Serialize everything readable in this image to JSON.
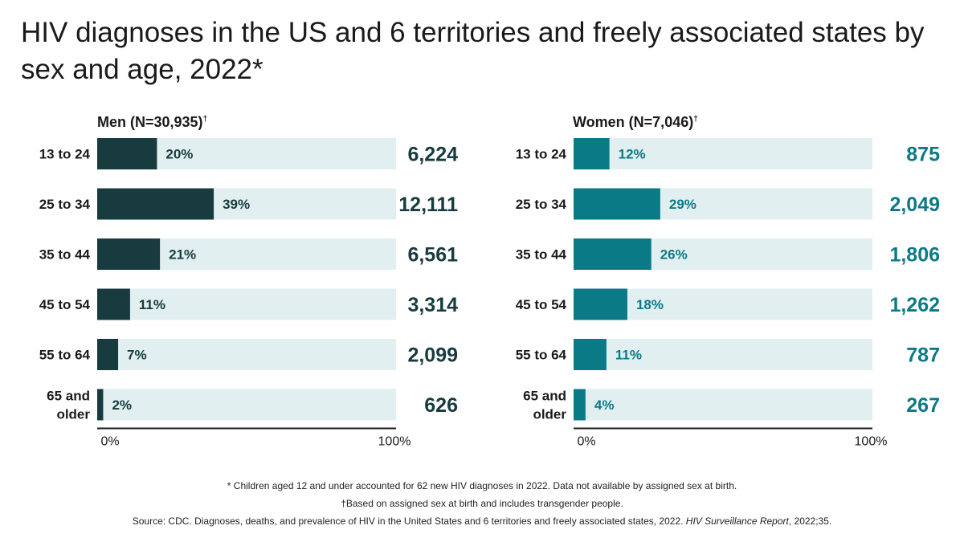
{
  "title": "HIV diagnoses in the US and 6 territories and freely associated states by sex and age, 2022*",
  "colors": {
    "men": "#173b3e",
    "women": "#0b7a87",
    "track": "#e1eff0",
    "axis": "#1a1a1a"
  },
  "chart_data": [
    {
      "type": "bar",
      "orientation": "horizontal",
      "panel_title": "Men (N=30,935)",
      "panel_mark": "†",
      "categories": [
        "13 to 24",
        "25 to 34",
        "35 to 44",
        "45 to 54",
        "55 to 64",
        "65 and older"
      ],
      "category_lines": [
        [
          "13 to 24"
        ],
        [
          "25 to 34"
        ],
        [
          "35 to 44"
        ],
        [
          "45 to 54"
        ],
        [
          "55 to 64"
        ],
        [
          "65 and",
          "older"
        ]
      ],
      "percent_values": [
        20,
        39,
        21,
        11,
        7,
        2
      ],
      "percent_labels": [
        "20%",
        "39%",
        "21%",
        "11%",
        "7%",
        "2%"
      ],
      "count_labels": [
        "6,224",
        "12,111",
        "6,561",
        "3,314",
        "2,099",
        "626"
      ],
      "xlim": [
        0,
        100
      ],
      "x_tick_labels": [
        "0%",
        "100%"
      ]
    },
    {
      "type": "bar",
      "orientation": "horizontal",
      "panel_title": "Women (N=7,046)",
      "panel_mark": "†",
      "categories": [
        "13 to 24",
        "25 to 34",
        "35 to 44",
        "45 to 54",
        "55 to 64",
        "65 and older"
      ],
      "category_lines": [
        [
          "13 to 24"
        ],
        [
          "25 to 34"
        ],
        [
          "35 to 44"
        ],
        [
          "45 to 54"
        ],
        [
          "55 to 64"
        ],
        [
          "65 and",
          "older"
        ]
      ],
      "percent_values": [
        12,
        29,
        26,
        18,
        11,
        4
      ],
      "percent_labels": [
        "12%",
        "29%",
        "26%",
        "18%",
        "11%",
        "4%"
      ],
      "count_labels": [
        "875",
        "2,049",
        "1,806",
        "1,262",
        "787",
        "267"
      ],
      "xlim": [
        0,
        100
      ],
      "x_tick_labels": [
        "0%",
        "100%"
      ]
    }
  ],
  "footnotes": {
    "children": "* Children aged 12 and under accounted for 62 new HIV diagnoses in 2022. Data not available by assigned sex at birth.",
    "sex": "†Based on assigned sex at birth and includes transgender people.",
    "source_prefix": "Source: CDC. Diagnoses, deaths, and prevalence of HIV in the United States and 6 territories and freely associated states, 2022. ",
    "source_journal": "HIV Surveillance Report",
    "source_suffix": ", 2022;35."
  }
}
